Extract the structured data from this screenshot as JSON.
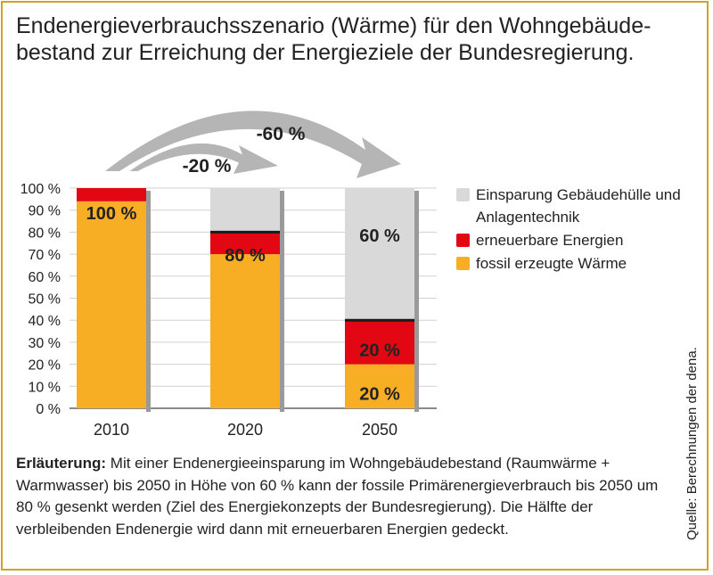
{
  "title": "Endenergieverbrauchsszenario (Wärme) für den Wohngebäude-bestand zur Erreichung der Energieziele der Bundesregierung.",
  "colors": {
    "fossil": "#f7ae24",
    "renewable": "#e30613",
    "savings": "#d9d9d9",
    "shadow": "#9a9a9a",
    "frame": "#d4a12a",
    "arrow": "#b5b5b5"
  },
  "chart_data": {
    "type": "bar",
    "stacked": true,
    "categories": [
      "2010",
      "2020",
      "2050"
    ],
    "ylim": [
      0,
      100
    ],
    "yticks": [
      "0 %",
      "10 %",
      "20 %",
      "30 %",
      "40 %",
      "50 %",
      "60 %",
      "70 %",
      "80 %",
      "90 %",
      "100 %"
    ],
    "series": [
      {
        "name": "fossil erzeugte Wärme",
        "values": [
          94,
          70,
          20
        ]
      },
      {
        "name": "erneuerbare Energien",
        "values": [
          6,
          10,
          20
        ]
      },
      {
        "name": "Einsparung Gebäudehülle und Anlagentechnik",
        "values": [
          0,
          20,
          60
        ]
      }
    ],
    "bar_labels": [
      {
        "category": "2010",
        "text": "100 %",
        "at": 89
      },
      {
        "category": "2020",
        "text": "80 %",
        "at": 70
      },
      {
        "category": "2050",
        "text": "60 %",
        "at": 79
      },
      {
        "category": "2050",
        "text": "20 %",
        "at": 27
      },
      {
        "category": "2050",
        "text": "20 %",
        "at": 7
      }
    ],
    "arrows": [
      {
        "from": "2010",
        "to": "2020",
        "label": "-20 %"
      },
      {
        "from": "2010",
        "to": "2050",
        "label": "-60 %"
      }
    ],
    "legend": [
      {
        "label": "Einsparung Gebäudehülle und Anlagentechnik",
        "series": 2
      },
      {
        "label": "erneuerbare Energien",
        "series": 1
      },
      {
        "label": "fossil erzeugte Wärme",
        "series": 0
      }
    ],
    "legend_position": "right"
  },
  "note": {
    "lead": "Erläuterung:",
    "text": " Mit einer Endenergieeinsparung im Wohngebäudebestand (Raumwärme + Warmwasser) bis 2050 in Höhe von 60 % kann der fossile Primärenergieverbrauch bis 2050 um 80 % gesenkt werden (Ziel des Energiekonzepts der Bundesregierung). Die Hälfte der verbleibenden Endenergie wird dann mit erneuerbaren Energien gedeckt."
  },
  "source": "Quelle: Berechnungen der dena."
}
